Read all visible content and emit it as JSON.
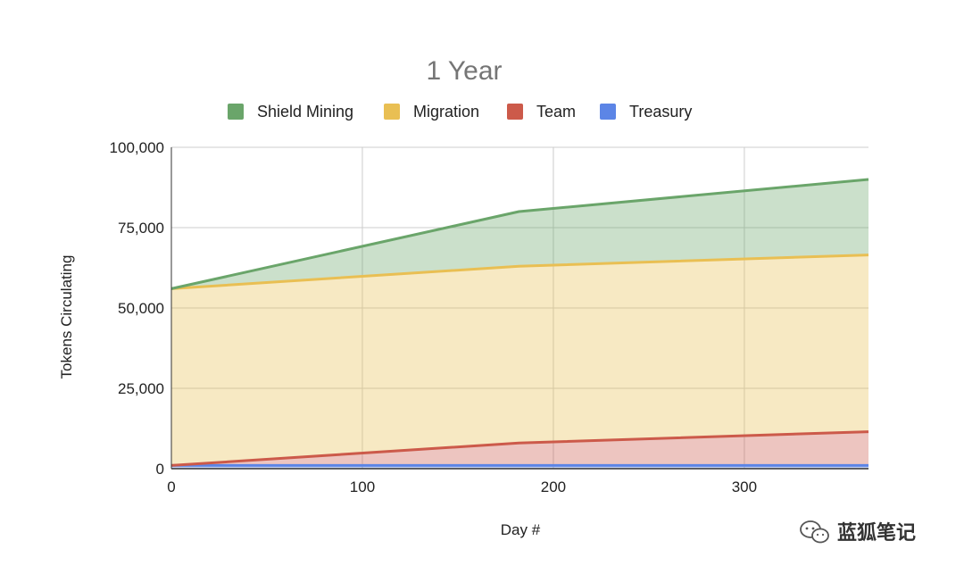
{
  "chart_data": {
    "type": "area",
    "stacked": true,
    "title": "1 Year",
    "xlabel": "Day #",
    "ylabel": "Tokens Circulating",
    "xlim": [
      0,
      365
    ],
    "ylim": [
      0,
      100000
    ],
    "x_ticks": [
      "0",
      "100",
      "200",
      "300"
    ],
    "y_ticks": [
      "0",
      "25,000",
      "50,000",
      "75,000",
      "100,000"
    ],
    "grid": true,
    "legend_position": "top",
    "x": [
      0,
      182,
      365
    ],
    "series": [
      {
        "name": "Treasury",
        "color": "#5c85e6",
        "values": [
          1000,
          1000,
          1000
        ]
      },
      {
        "name": "Team",
        "color": "#cc5a4a",
        "values": [
          0,
          7000,
          10500
        ]
      },
      {
        "name": "Migration",
        "color": "#e9bf53",
        "values": [
          55000,
          55000,
          55000
        ]
      },
      {
        "name": "Shield Mining",
        "color": "#6aa56a",
        "values": [
          0,
          17000,
          23500
        ]
      }
    ],
    "legend_order": [
      "Shield Mining",
      "Migration",
      "Team",
      "Treasury"
    ]
  },
  "watermark": {
    "text": "蓝狐笔记",
    "icon": "wechat-icon"
  }
}
